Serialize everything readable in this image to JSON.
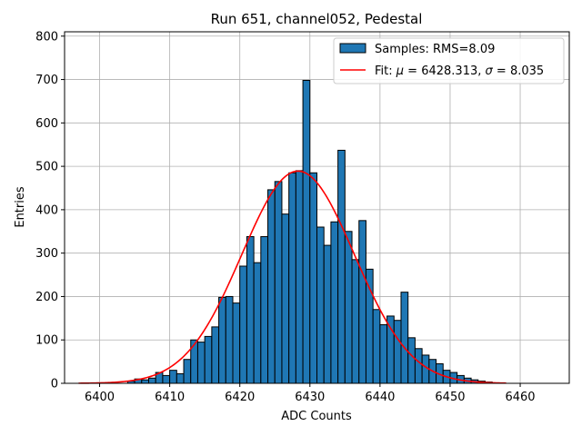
{
  "chart_data": {
    "type": "bar",
    "title": "Run 651, channel052, Pedestal",
    "xlabel": "ADC Counts",
    "ylabel": "Entries",
    "xlim": [
      6395,
      6467
    ],
    "ylim": [
      0,
      810
    ],
    "xticks": [
      6400,
      6410,
      6420,
      6430,
      6440,
      6450,
      6460
    ],
    "yticks": [
      0,
      100,
      200,
      300,
      400,
      500,
      600,
      700,
      800
    ],
    "grid": true,
    "legend_position": "top-right",
    "colors": {
      "bar_fill": "#1f77b4",
      "bar_edge": "#000000",
      "fit_line": "#ff0000",
      "grid": "#b0b0b0"
    },
    "histogram": {
      "name": "Samples: RMS=8.09",
      "bin_start": 6404,
      "bin_width": 1,
      "values": [
        5,
        10,
        8,
        12,
        25,
        18,
        30,
        22,
        55,
        100,
        95,
        108,
        130,
        198,
        200,
        185,
        270,
        338,
        278,
        338,
        446,
        465,
        390,
        485,
        490,
        698,
        485,
        360,
        318,
        372,
        537,
        350,
        285,
        375,
        263,
        170,
        135,
        155,
        145,
        210,
        105,
        80,
        65,
        55,
        45,
        30,
        25,
        18,
        12,
        8,
        5,
        3
      ]
    },
    "fit": {
      "legend_prefix": "Fit: ",
      "mu_symbol": "μ",
      "sigma_symbol": "σ",
      "mu_value": "6428.313",
      "sigma_value": "8.035",
      "mu": 6428.313,
      "sigma": 8.035,
      "amplitude": 489,
      "x_range": [
        6397,
        6458
      ]
    }
  }
}
